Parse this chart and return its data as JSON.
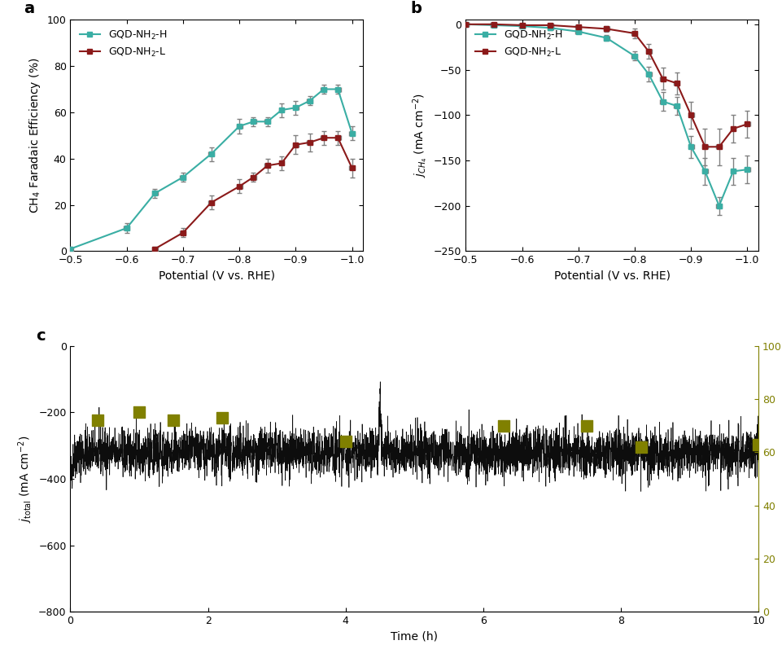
{
  "panel_a": {
    "teal_x": [
      -0.5,
      -0.6,
      -0.65,
      -0.7,
      -0.75,
      -0.8,
      -0.825,
      -0.85,
      -0.875,
      -0.9,
      -0.925,
      -0.95,
      -0.975,
      -1.0
    ],
    "teal_y": [
      1,
      10,
      25,
      32,
      42,
      54,
      56,
      56,
      61,
      62,
      65,
      70,
      70,
      51
    ],
    "teal_xerr": [
      0.005,
      0.005,
      0.005,
      0.005,
      0.005,
      0.005,
      0.005,
      0.005,
      0.005,
      0.005,
      0.005,
      0.005,
      0.005,
      0.005
    ],
    "teal_yerr": [
      1,
      2,
      2,
      2,
      3,
      3,
      2,
      2,
      3,
      3,
      2,
      2,
      2,
      3
    ],
    "red_x": [
      -0.65,
      -0.7,
      -0.75,
      -0.8,
      -0.825,
      -0.85,
      -0.875,
      -0.9,
      -0.925,
      -0.95,
      -0.975,
      -1.0
    ],
    "red_y": [
      1,
      8,
      21,
      28,
      32,
      37,
      38,
      46,
      47,
      49,
      49,
      36
    ],
    "red_xerr": [
      0.005,
      0.005,
      0.005,
      0.005,
      0.005,
      0.005,
      0.005,
      0.005,
      0.005,
      0.005,
      0.005,
      0.005
    ],
    "red_yerr": [
      1,
      2,
      3,
      3,
      2,
      3,
      3,
      4,
      4,
      3,
      3,
      4
    ],
    "xlabel": "Potential (V vs. RHE)",
    "ylabel": "CH$_4$ Faradaic Efficiency (%)",
    "xlim": [
      -0.5,
      -1.02
    ],
    "ylim": [
      0,
      100
    ],
    "xticks": [
      -0.5,
      -0.6,
      -0.7,
      -0.8,
      -0.9,
      -1.0
    ],
    "yticks": [
      0,
      20,
      40,
      60,
      80,
      100
    ],
    "teal_color": "#3aaea4",
    "red_color": "#8b1a1a",
    "label": "a"
  },
  "panel_b": {
    "teal_x": [
      -0.5,
      -0.55,
      -0.6,
      -0.65,
      -0.7,
      -0.75,
      -0.8,
      -0.825,
      -0.85,
      -0.875,
      -0.9,
      -0.925,
      -0.95,
      -0.975,
      -1.0
    ],
    "teal_y": [
      0,
      -1,
      -2,
      -4,
      -8,
      -15,
      -35,
      -55,
      -85,
      -90,
      -135,
      -162,
      -200,
      -162,
      -160
    ],
    "teal_xerr": [
      0.005,
      0.005,
      0.005,
      0.005,
      0.005,
      0.005,
      0.005,
      0.005,
      0.005,
      0.005,
      0.005,
      0.005,
      0.005,
      0.005,
      0.005
    ],
    "teal_yerr": [
      1,
      1,
      1,
      2,
      2,
      3,
      5,
      8,
      10,
      10,
      12,
      15,
      10,
      15,
      15
    ],
    "red_x": [
      -0.5,
      -0.55,
      -0.6,
      -0.65,
      -0.7,
      -0.75,
      -0.8,
      -0.825,
      -0.85,
      -0.875,
      -0.9,
      -0.925,
      -0.95,
      -0.975,
      -1.0
    ],
    "red_y": [
      0,
      0,
      -1,
      -1,
      -3,
      -5,
      -10,
      -30,
      -60,
      -65,
      -100,
      -135,
      -135,
      -115,
      -110
    ],
    "red_xerr": [
      0.005,
      0.005,
      0.005,
      0.005,
      0.005,
      0.005,
      0.005,
      0.005,
      0.005,
      0.005,
      0.005,
      0.005,
      0.005,
      0.005,
      0.005
    ],
    "red_yerr": [
      1,
      1,
      1,
      1,
      2,
      3,
      5,
      8,
      12,
      12,
      15,
      20,
      20,
      15,
      15
    ],
    "xlabel": "Potential (V vs. RHE)",
    "ylabel": "$j_{CH_4}$ (mA cm$^{-2}$)",
    "xlim": [
      -0.5,
      -1.02
    ],
    "ylim": [
      -250,
      5
    ],
    "xticks": [
      -0.5,
      -0.6,
      -0.7,
      -0.8,
      -0.9,
      -1.0
    ],
    "yticks": [
      0,
      -50,
      -100,
      -150,
      -200,
      -250
    ],
    "teal_color": "#3aaea4",
    "red_color": "#8b1a1a",
    "label": "b"
  },
  "panel_c": {
    "ylabel_left": "$j_\\mathrm{total}$ (mA cm$^{-2}$)",
    "ylabel_right": "CH$_4$ Faradaic Efficiency (%)",
    "xlabel": "Time (h)",
    "ylim_left": [
      -800,
      0
    ],
    "ylim_right": [
      0,
      100
    ],
    "yticks_left": [
      0,
      -200,
      -400,
      -600,
      -800
    ],
    "yticks_right": [
      0,
      20,
      40,
      60,
      80,
      100
    ],
    "scatter_x": [
      0.4,
      1.0,
      1.5,
      2.2,
      4.0,
      6.3,
      7.5,
      8.3,
      10.0
    ],
    "scatter_y": [
      72,
      75,
      72,
      73,
      64,
      70,
      70,
      62,
      63
    ],
    "scatter_color": "#808000",
    "current_mean": -320,
    "label": "c"
  },
  "teal_color": "#3aaea4",
  "red_color": "#8b1a1a"
}
